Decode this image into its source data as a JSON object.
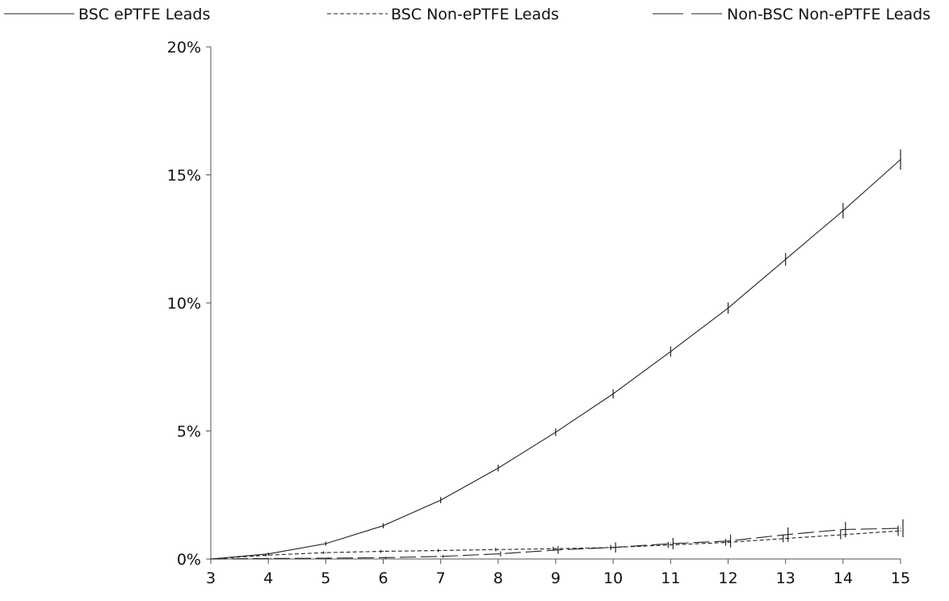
{
  "chart_data": {
    "type": "line",
    "title": "",
    "xlabel": "",
    "ylabel": "",
    "x": [
      3,
      4,
      5,
      6,
      7,
      8,
      9,
      10,
      11,
      12,
      13,
      14,
      15
    ],
    "xlim": [
      3,
      15
    ],
    "ylim": [
      0,
      20
    ],
    "y_ticks": [
      0,
      5,
      10,
      15,
      20
    ],
    "y_tick_labels": [
      "0%",
      "5%",
      "10%",
      "15%",
      "20%"
    ],
    "x_tick_labels": [
      "3",
      "4",
      "5",
      "6",
      "7",
      "8",
      "9",
      "10",
      "11",
      "12",
      "13",
      "14",
      "15"
    ],
    "grid": false,
    "legend_position": "top",
    "series": [
      {
        "name": "BSC ePTFE Leads",
        "line_style": "solid",
        "values": [
          0.0,
          0.2,
          0.6,
          1.3,
          2.3,
          3.55,
          4.95,
          6.45,
          8.1,
          9.8,
          11.7,
          13.6,
          15.6
        ],
        "ci_halfwidth": [
          0.0,
          0.05,
          0.08,
          0.1,
          0.12,
          0.13,
          0.15,
          0.18,
          0.2,
          0.22,
          0.25,
          0.3,
          0.4
        ]
      },
      {
        "name": "BSC Non-ePTFE Leads",
        "line_style": "dashed",
        "values": [
          0.0,
          0.15,
          0.25,
          0.3,
          0.33,
          0.37,
          0.4,
          0.45,
          0.55,
          0.65,
          0.8,
          0.95,
          1.1
        ],
        "ci_halfwidth": [
          0.0,
          0.05,
          0.05,
          0.06,
          0.06,
          0.07,
          0.08,
          0.1,
          0.12,
          0.13,
          0.15,
          0.18,
          0.2
        ]
      },
      {
        "name": "Non-BSC Non-ePTFE Leads",
        "line_style": "long-dash",
        "values": [
          0.0,
          0.02,
          0.03,
          0.05,
          0.1,
          0.2,
          0.35,
          0.45,
          0.6,
          0.7,
          0.95,
          1.15,
          1.2
        ],
        "ci_halfwidth": [
          0.0,
          0.02,
          0.03,
          0.04,
          0.05,
          0.1,
          0.15,
          0.2,
          0.22,
          0.25,
          0.28,
          0.3,
          0.35
        ]
      }
    ]
  }
}
